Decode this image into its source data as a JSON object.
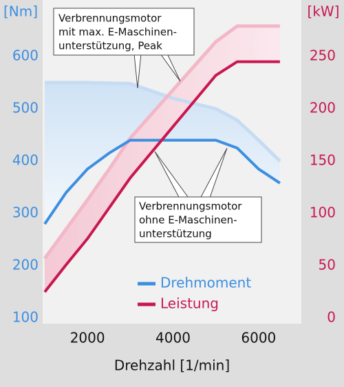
{
  "chart_data": {
    "type": "line",
    "y_label": "[Nm]",
    "y2_label": "[kW]",
    "x_label": "Drehzahl [1/min]",
    "x": [
      1000,
      1500,
      2000,
      2500,
      3000,
      4000,
      5000,
      5500,
      6000,
      6500
    ],
    "xlim": [
      1000,
      7000
    ],
    "xticks": [
      2000,
      4000,
      6000
    ],
    "ylim": [
      100,
      700
    ],
    "yticks": [
      100,
      200,
      300,
      400,
      500,
      600
    ],
    "y2lim": [
      0,
      300
    ],
    "y2ticks": [
      0,
      50,
      100,
      150,
      200,
      250
    ],
    "series": [
      {
        "name": "Drehmoment",
        "color": "#3c8ee0",
        "values": [
          280,
          340,
          385,
          415,
          440,
          440,
          440,
          425,
          385,
          358
        ]
      },
      {
        "name": "Leistung",
        "color": "#c8174f",
        "axis": "y2",
        "values": [
          25,
          51,
          76,
          105,
          134,
          183,
          232,
          245,
          245,
          245
        ]
      },
      {
        "color": "#c6dcf2",
        "values": [
          550,
          550,
          550,
          549,
          548,
          520,
          500,
          478,
          440,
          400
        ]
      },
      {
        "color": "#f2b8c8",
        "axis": "y2",
        "values": [
          57,
          85,
          113,
          142,
          172,
          218,
          264,
          279,
          279,
          279
        ]
      }
    ],
    "annotations": [
      {
        "lines": [
          "Verbrennungsmotor",
          "mit max. E-Maschinen-",
          "unterstützung, Peak"
        ]
      },
      {
        "lines": [
          "Verbrennungsmotor",
          "ohne E-Maschinen-",
          "unterstützung"
        ]
      }
    ]
  }
}
